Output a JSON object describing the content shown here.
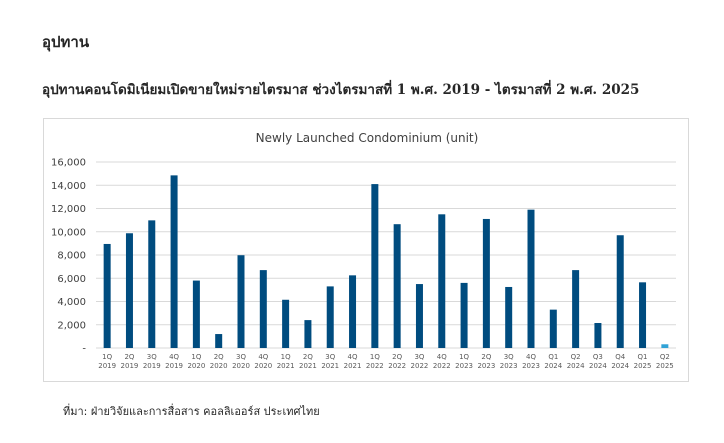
{
  "heading": "อุปทาน",
  "subheading": "อุปทานคอนโดมิเนียมเปิดขายใหม่รายไตรมาส ช่วงไตรมาสที่ 1 พ.ศ. 2019 - ไตรมาสที่ 2 พ.ศ. 2025",
  "source": "ที่มา: ฝ่ายวิจัยและการสื่อสาร คอลลิเออร์ส ประเทศไทย",
  "colors": {
    "bar": "#004C7F",
    "bar_highlight": "#32A3D6",
    "grid": "#D9D9D9"
  },
  "chart_data": {
    "type": "bar",
    "title": "Newly Launched Condominium (unit)",
    "xlabel": "",
    "ylabel": "",
    "ylim": [
      0,
      16000
    ],
    "yticks": [
      "-",
      "2,000",
      "4,000",
      "6,000",
      "8,000",
      "10,000",
      "12,000",
      "14,000",
      "16,000"
    ],
    "grid": true,
    "legend": "none",
    "categories": [
      [
        "1Q",
        "2019"
      ],
      [
        "2Q",
        "2019"
      ],
      [
        "3Q",
        "2019"
      ],
      [
        "4Q",
        "2019"
      ],
      [
        "1Q",
        "2020"
      ],
      [
        "2Q",
        "2020"
      ],
      [
        "3Q",
        "2020"
      ],
      [
        "4Q",
        "2020"
      ],
      [
        "1Q",
        "2021"
      ],
      [
        "2Q",
        "2021"
      ],
      [
        "3Q",
        "2021"
      ],
      [
        "4Q",
        "2021"
      ],
      [
        "1Q",
        "2022"
      ],
      [
        "2Q",
        "2022"
      ],
      [
        "3Q",
        "2022"
      ],
      [
        "4Q",
        "2022"
      ],
      [
        "1Q",
        "2023"
      ],
      [
        "2Q",
        "2023"
      ],
      [
        "3Q",
        "2023"
      ],
      [
        "4Q",
        "2023"
      ],
      [
        "Q1",
        "2024"
      ],
      [
        "Q2",
        "2024"
      ],
      [
        "Q3",
        "2024"
      ],
      [
        "Q4",
        "2024"
      ],
      [
        "Q1",
        "2025"
      ],
      [
        "Q2",
        "2025"
      ]
    ],
    "values": [
      8950,
      9870,
      10980,
      14850,
      5800,
      1200,
      7980,
      6700,
      4150,
      2400,
      5300,
      6250,
      14100,
      10650,
      5500,
      11500,
      5600,
      11100,
      5250,
      11900,
      3300,
      6700,
      2150,
      9700,
      5650,
      320
    ],
    "highlight_index": 25
  }
}
